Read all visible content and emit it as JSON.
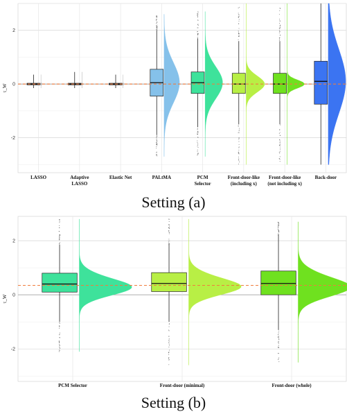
{
  "captions": {
    "a": "Setting (a)",
    "b": "Setting (b)"
  },
  "chart_data": [
    {
      "type": "box",
      "panel": "a",
      "ylabel": "τ_W",
      "ylim": [
        -3.3,
        3.0
      ],
      "yticks": [
        -2,
        0,
        2
      ],
      "reference_line": {
        "y": 0.0,
        "style": "dashed",
        "color": "#f07c3c"
      },
      "grid": true,
      "categories": [
        {
          "label": [
            "LASSO"
          ],
          "color": "#b8b8b8",
          "median": 0.0,
          "q1": -0.03,
          "q3": 0.03,
          "wlo": -0.15,
          "whi": 0.35,
          "olo": -0.15,
          "ohi": 0.35,
          "spread": 0.03,
          "violin_w": 0.06,
          "skew": 0.0
        },
        {
          "label": [
            "Adaptive",
            "LASSO"
          ],
          "color": "#b8b8b8",
          "median": 0.0,
          "q1": -0.03,
          "q3": 0.03,
          "wlo": -0.15,
          "whi": 0.45,
          "olo": -0.15,
          "ohi": 0.45,
          "spread": 0.03,
          "violin_w": 0.06,
          "skew": 0.0
        },
        {
          "label": [
            "Elastic Net"
          ],
          "color": "#b8b8b8",
          "median": 0.0,
          "q1": -0.03,
          "q3": 0.03,
          "wlo": -0.15,
          "whi": 0.35,
          "olo": -0.15,
          "ohi": 0.35,
          "spread": 0.03,
          "violin_w": 0.06,
          "skew": 0.0
        },
        {
          "label": [
            "PALtMA"
          ],
          "color": "#85c1ea",
          "median": 0.05,
          "q1": -0.45,
          "q3": 0.55,
          "wlo": -1.9,
          "whi": 2.0,
          "olo": -2.7,
          "ohi": 2.6,
          "spread": 0.75,
          "violin_w": 0.75,
          "skew": 0.0
        },
        {
          "label": [
            "PCM",
            "Selector"
          ],
          "color": "#3ee29b",
          "median": 0.05,
          "q1": -0.35,
          "q3": 0.45,
          "wlo": -1.6,
          "whi": 1.7,
          "olo": -2.7,
          "ohi": 2.7,
          "spread": 0.6,
          "violin_w": 0.85,
          "skew": 0.0
        },
        {
          "label": [
            "Front-door-like",
            "(including x)"
          ],
          "color": "#b8ef45",
          "median": 0.0,
          "q1": -0.35,
          "q3": 0.4,
          "wlo": -1.5,
          "whi": 1.6,
          "olo": -3.0,
          "ohi": 3.0,
          "spread": 0.3,
          "violin_w": 0.9,
          "skew": 0.0
        },
        {
          "label": [
            "Front-door-like",
            "(not including x)"
          ],
          "color": "#6fe11f",
          "median": 0.0,
          "q1": -0.35,
          "q3": 0.4,
          "wlo": -1.5,
          "whi": 1.6,
          "olo": -3.0,
          "ohi": 3.0,
          "spread": 0.15,
          "violin_w": 0.85,
          "skew": 0.0
        },
        {
          "label": [
            "Back-door"
          ],
          "color": "#3b74f2",
          "median": 0.1,
          "q1": -0.75,
          "q3": 0.85,
          "wlo": -3.0,
          "whi": 3.0,
          "olo": -3.0,
          "ohi": 3.0,
          "spread": 1.2,
          "violin_w": 0.85,
          "skew": 0.0
        }
      ]
    },
    {
      "type": "box",
      "panel": "b",
      "ylabel": "τ_W",
      "ylim": [
        -3.2,
        2.9
      ],
      "yticks": [
        -2,
        0,
        2
      ],
      "reference_line": {
        "y": 0.35,
        "style": "dashed",
        "color": "#f07c3c"
      },
      "grid": true,
      "categories": [
        {
          "label": [
            "PCM Selector"
          ],
          "color": "#3ee29b",
          "median": 0.4,
          "q1": 0.1,
          "q3": 0.8,
          "wlo": -1.0,
          "whi": 1.85,
          "olo": -2.1,
          "ohi": 2.8,
          "spread": 0.35,
          "violin_w": 0.9,
          "skew": -0.4
        },
        {
          "label": [
            "Front-door (minimal)"
          ],
          "color": "#b8ef45",
          "median": 0.42,
          "q1": 0.12,
          "q3": 0.82,
          "wlo": -1.0,
          "whi": 1.85,
          "olo": -2.6,
          "ohi": 2.8,
          "spread": 0.35,
          "violin_w": 0.9,
          "skew": -0.4
        },
        {
          "label": [
            "Front-door (whole)"
          ],
          "color": "#6fe11f",
          "median": 0.42,
          "q1": 0.0,
          "q3": 0.88,
          "wlo": -1.3,
          "whi": 2.2,
          "olo": -2.5,
          "ohi": 2.7,
          "spread": 0.4,
          "violin_w": 0.9,
          "skew": -0.4
        }
      ]
    }
  ]
}
